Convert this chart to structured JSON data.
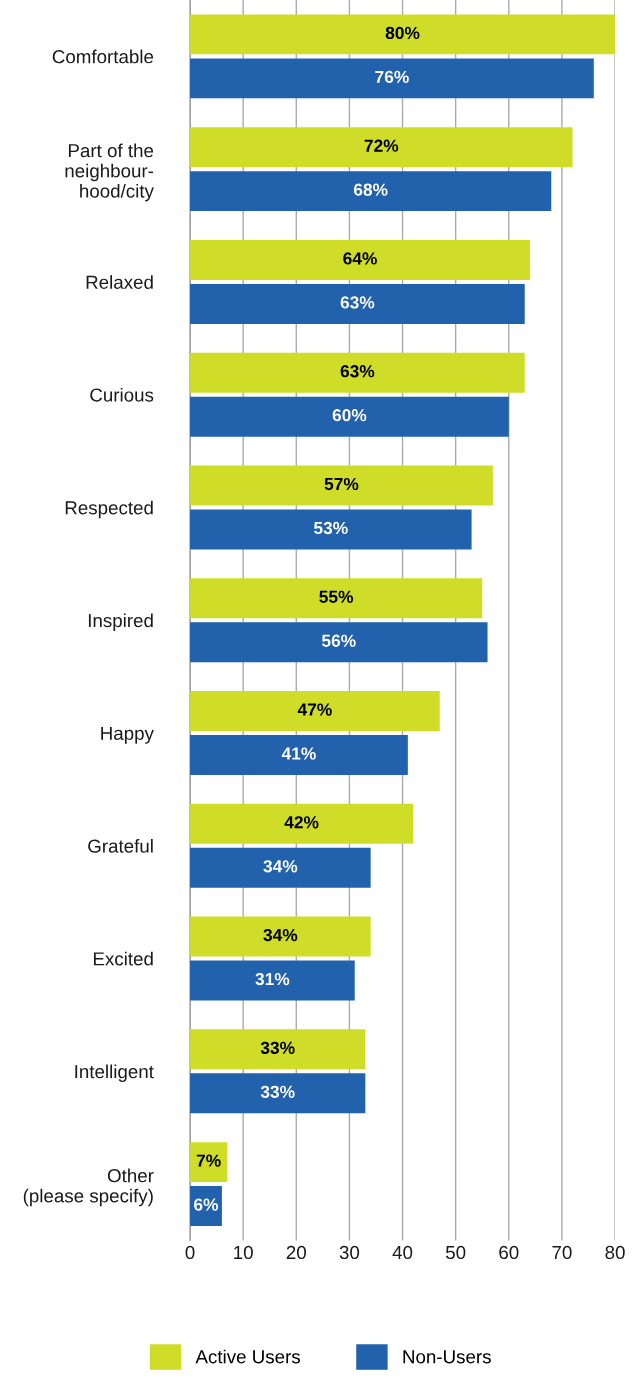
{
  "chart_data": {
    "type": "bar",
    "orientation": "horizontal",
    "categories": [
      "Comfortable",
      "Part of the\nneighbour-\nhood/city",
      "Relaxed",
      "Curious",
      "Respected",
      "Inspired",
      "Happy",
      "Grateful",
      "Excited",
      "Intelligent",
      "Other\n(please specify)"
    ],
    "series": [
      {
        "name": "Active Users",
        "color": "#cfdc28",
        "values": [
          80,
          72,
          64,
          63,
          57,
          55,
          47,
          42,
          34,
          33,
          7
        ],
        "value_labels": [
          "80%",
          "72%",
          "64%",
          "63%",
          "57%",
          "55%",
          "47%",
          "42%",
          "34%",
          "33%",
          "7%"
        ]
      },
      {
        "name": "Non-Users",
        "color": "#2262ad",
        "values": [
          76,
          68,
          63,
          60,
          53,
          56,
          41,
          34,
          31,
          33,
          6
        ],
        "value_labels": [
          "76%",
          "68%",
          "63%",
          "60%",
          "53%",
          "56%",
          "41%",
          "34%",
          "31%",
          "33%",
          "6%"
        ]
      }
    ],
    "xlim": [
      0,
      80
    ],
    "xticks": [
      0,
      10,
      20,
      30,
      40,
      50,
      60,
      70,
      80
    ],
    "grid": "x",
    "legend": "bottom"
  }
}
